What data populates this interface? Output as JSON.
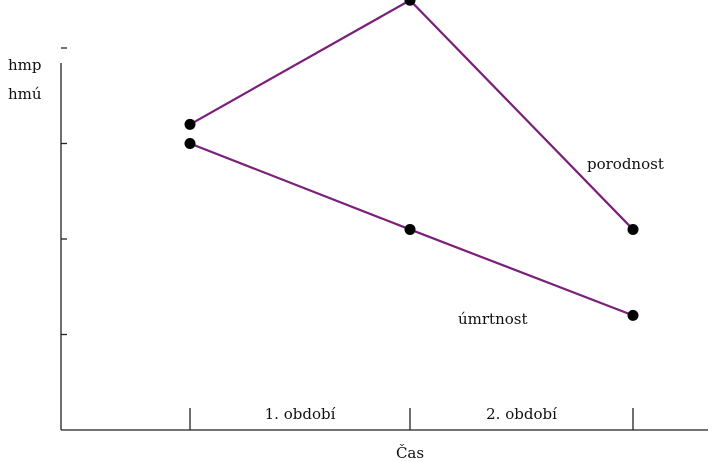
{
  "chart_data": {
    "type": "line",
    "x": [
      0,
      1,
      2
    ],
    "xlabel": "Čas",
    "ylabel_lines": [
      "hmp",
      "hmú"
    ],
    "ylim": [
      0,
      4
    ],
    "x_segment_labels": [
      "1. období",
      "2. období"
    ],
    "series": [
      {
        "name": "porodnost",
        "values": [
          3.2,
          4.5,
          2.1
        ],
        "color": "#7a1f7a"
      },
      {
        "name": "úmrtnost",
        "values": [
          3.0,
          2.1,
          1.2
        ],
        "color": "#7a1f7a"
      }
    ],
    "grid": false,
    "legend": "inline labels"
  }
}
